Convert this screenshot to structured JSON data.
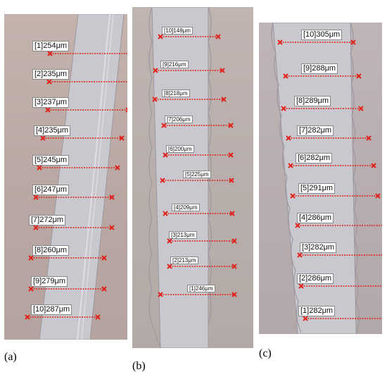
{
  "panels": {
    "a": {
      "caption": "(a)",
      "measurements": [
        {
          "index": 1,
          "label": "[1]254μm"
        },
        {
          "index": 2,
          "label": "[2]235μm"
        },
        {
          "index": 3,
          "label": "[3]237μm"
        },
        {
          "index": 4,
          "label": "[4]235μm"
        },
        {
          "index": 5,
          "label": "[5]245μm"
        },
        {
          "index": 6,
          "label": "[6]247μm"
        },
        {
          "index": 7,
          "label": "[7]272μm"
        },
        {
          "index": 8,
          "label": "[8]260μm"
        },
        {
          "index": 9,
          "label": "[9]279μm"
        },
        {
          "index": 10,
          "label": "[10]287μm"
        }
      ]
    },
    "b": {
      "caption": "(b)",
      "measurements": [
        {
          "index": 10,
          "label": "[10]148μm"
        },
        {
          "index": 9,
          "label": "[9]216μm"
        },
        {
          "index": 8,
          "label": "[8]218μm"
        },
        {
          "index": 7,
          "label": "[7]206μm"
        },
        {
          "index": 6,
          "label": "[6]200μm"
        },
        {
          "index": 5,
          "label": "[5]225μm"
        },
        {
          "index": 4,
          "label": "[4]209μm"
        },
        {
          "index": 3,
          "label": "[3]213μm"
        },
        {
          "index": 2,
          "label": "[2]213μm"
        },
        {
          "index": 1,
          "label": "[1]246μm"
        }
      ]
    },
    "c": {
      "caption": "(c)",
      "measurements": [
        {
          "index": 10,
          "label": "[10]305μm"
        },
        {
          "index": 9,
          "label": "[9]288μm"
        },
        {
          "index": 8,
          "label": "[8]289μm"
        },
        {
          "index": 7,
          "label": "[7]282μm"
        },
        {
          "index": 6,
          "label": "[6]282μm"
        },
        {
          "index": 5,
          "label": "[5]291μm"
        },
        {
          "index": 4,
          "label": "[4]286μm"
        },
        {
          "index": 3,
          "label": "[3]282μm"
        },
        {
          "index": 2,
          "label": "[2]286μm"
        },
        {
          "index": 1,
          "label": "[1]282μm"
        }
      ]
    }
  },
  "colors": {
    "measure_line": "#e0221c",
    "specimen": "#c9c8cf",
    "specimen_edge": "#9c98a0"
  }
}
